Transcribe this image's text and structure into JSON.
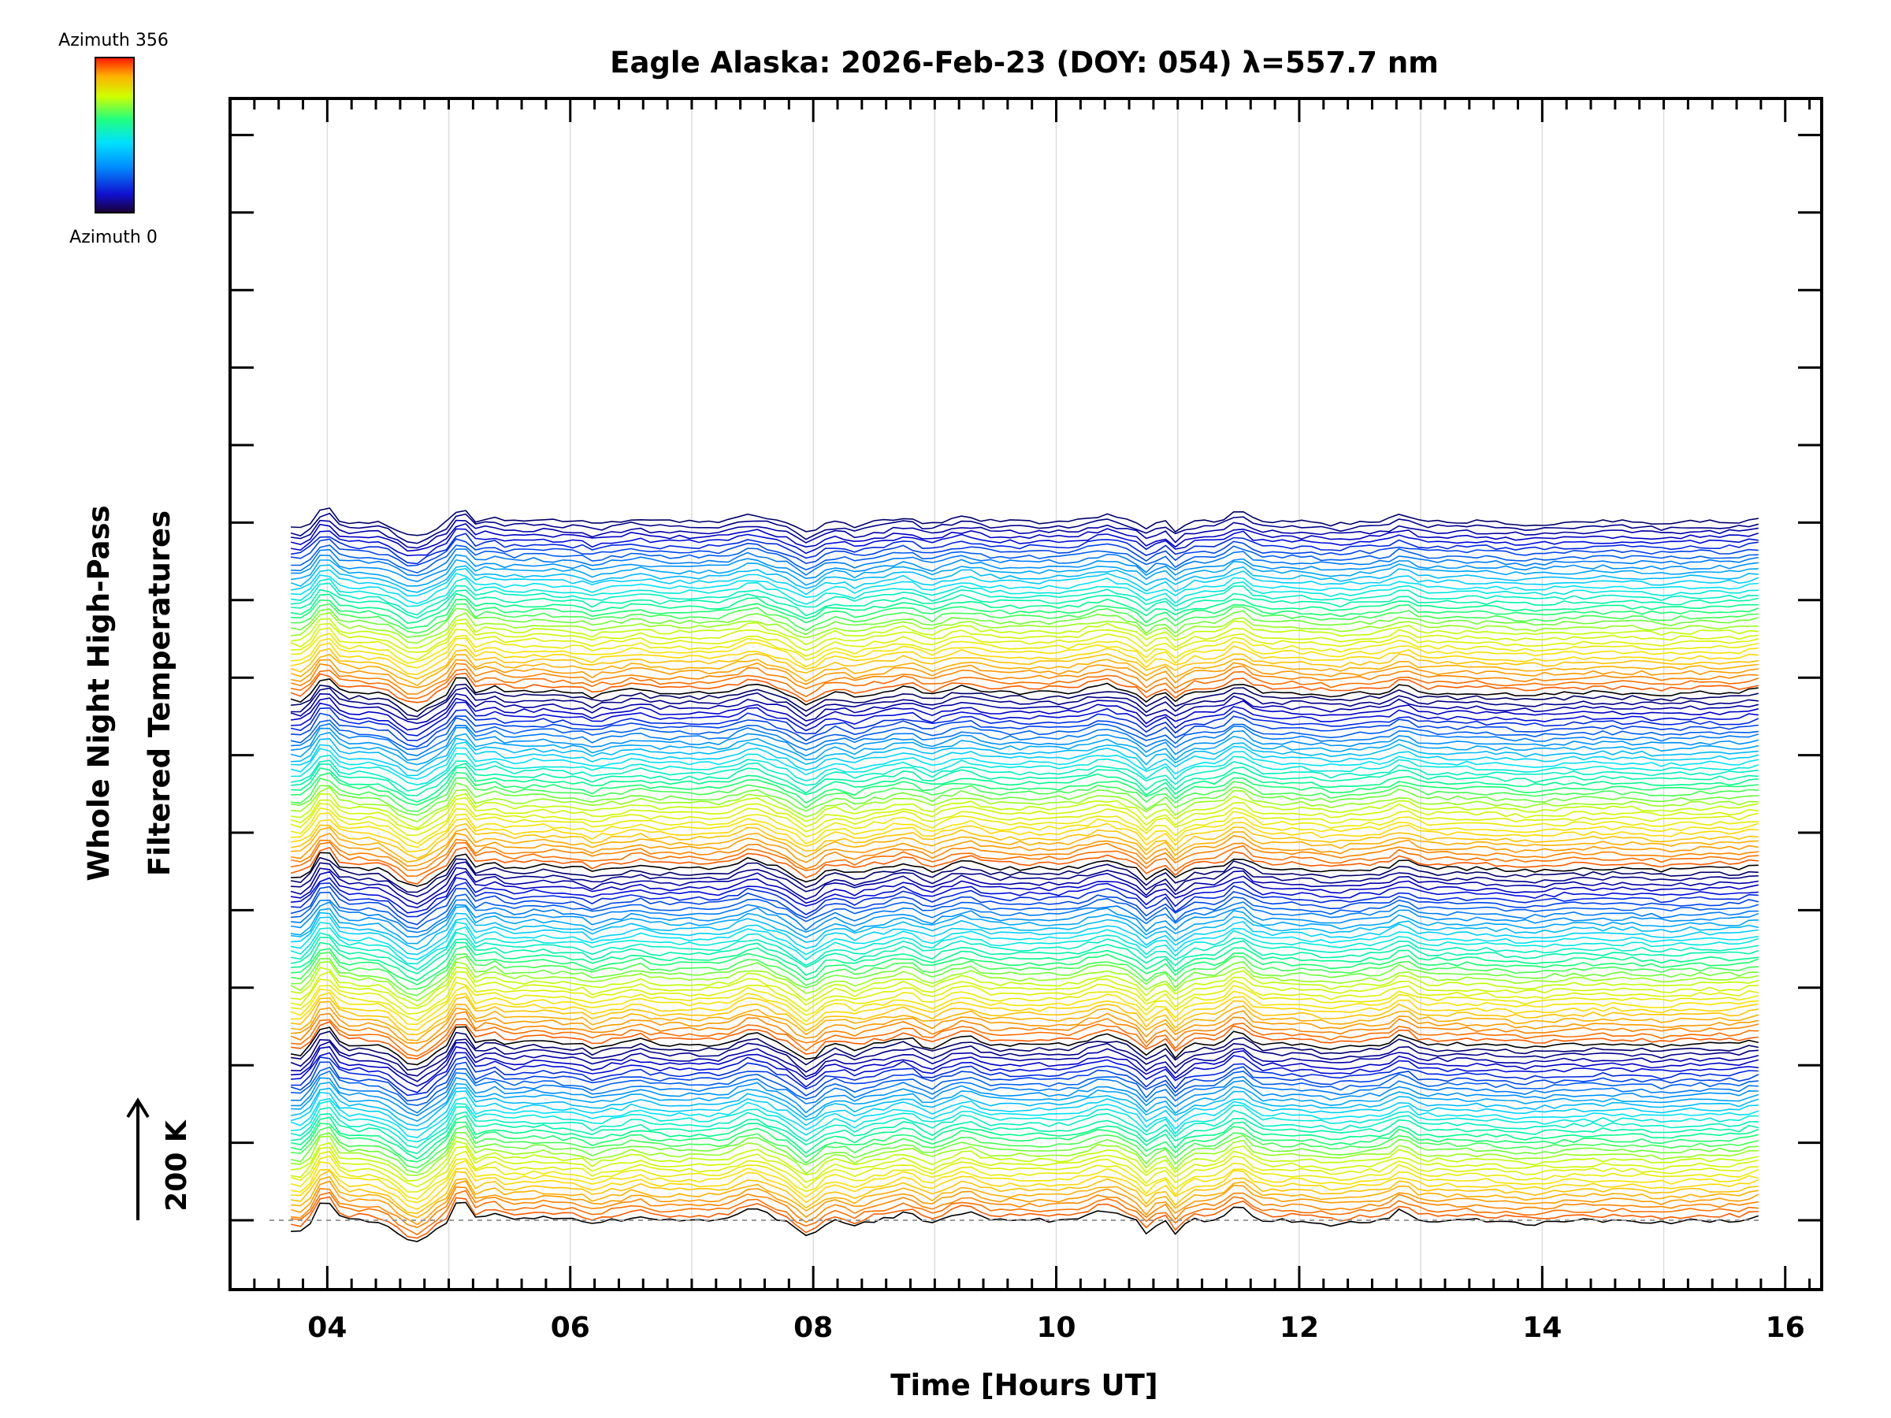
{
  "chart_data": {
    "type": "line",
    "title": "Eagle Alaska: 2026-Feb-23 (DOY: 054) λ=557.7 nm",
    "xlabel": "Time [Hours UT]",
    "ylabel_line1": "Whole Night High-Pass",
    "ylabel_line2": "Filtered Temperatures",
    "xlim": [
      3.2,
      16.3
    ],
    "x_range_data": [
      3.7,
      15.8
    ],
    "xticks": [
      4,
      6,
      8,
      10,
      12,
      14,
      16
    ],
    "xtick_labels": [
      "04",
      "06",
      "08",
      "10",
      "12",
      "14",
      "16"
    ],
    "scale_bar_label": "200 K",
    "scale_bar_value_K": 200,
    "colorbar": {
      "top_label": "Azimuth 356",
      "bottom_label": "Azimuth 0",
      "min": 0,
      "max": 356
    },
    "series_count": 140,
    "series_description": "Stacked high-pass filtered temperature traces, one per azimuth, coloured by azimuth (0 to 356)",
    "feature_times_hours": [
      4.05,
      4.7,
      5.1,
      7.5,
      7.95,
      10.4,
      10.75,
      11.0,
      11.5,
      12.85
    ]
  },
  "colors": {
    "colormap": [
      "#00004c",
      "#0000d8",
      "#0080ff",
      "#00e0ff",
      "#00ff80",
      "#c0ff00",
      "#ffe000",
      "#ff8000",
      "#ff2000"
    ]
  }
}
